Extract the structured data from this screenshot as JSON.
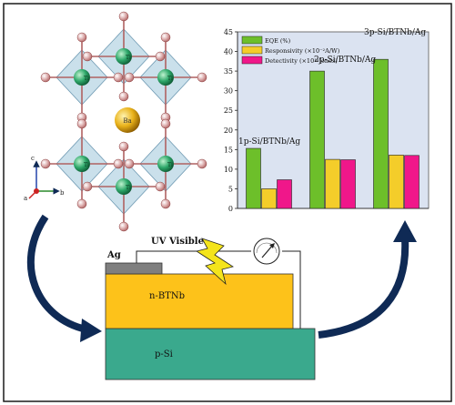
{
  "crystal": {
    "atoms": {
      "center": "Ba",
      "metal": "Ti"
    },
    "axes": {
      "c": "c",
      "a": "a",
      "b": "b"
    },
    "colors": {
      "octahedron": "#9fc6da",
      "ti": "#2ea86a",
      "ba": "#e9b21a",
      "oxygen": "#c98888"
    }
  },
  "chart_data": {
    "type": "bar",
    "categories": [
      "1p-Si/BTNb/Ag",
      "2p-Si/BTNb/Ag",
      "3p-Si/BTNb/Ag"
    ],
    "series": [
      {
        "name": "EQE (%)",
        "values": [
          15.3,
          35.0,
          38.0
        ],
        "color": "#6dbf2a"
      },
      {
        "name": "Responsivity (×10⁻²A/W)",
        "values": [
          5.0,
          12.5,
          13.6
        ],
        "color": "#f4cd2a"
      },
      {
        "name": "Detectivity (×10¹⁰Jones)",
        "values": [
          7.3,
          12.4,
          13.5
        ],
        "color": "#f0178a"
      }
    ],
    "ylim": [
      0,
      45
    ],
    "yticks": [
      0,
      5,
      10,
      15,
      20,
      25,
      30,
      35,
      40,
      45
    ],
    "legend": "top-left",
    "grid": false,
    "background": "#dbe3f1"
  },
  "device": {
    "electrode_label": "Ag",
    "light_label": "UV Visible",
    "top_layer_label": "n-BTNb",
    "bottom_layer_label": "p-Si",
    "colors": {
      "top": "#fdc21a",
      "bottom": "#3aa98d",
      "electrode": "#7f7f7f",
      "bolt": "#f4e41c"
    }
  },
  "arrows": {
    "color": "#0f2a55"
  }
}
